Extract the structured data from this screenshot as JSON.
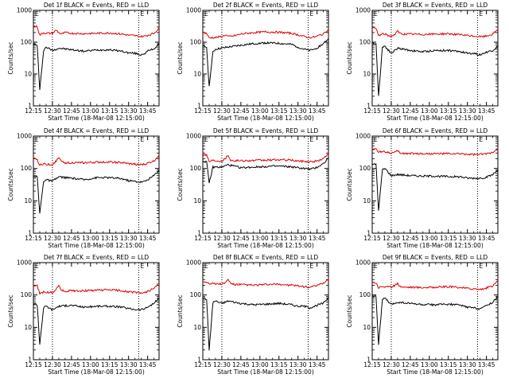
{
  "figure": {
    "x_tick_labels": [
      "12:15",
      "12:30",
      "12:45",
      "13:00",
      "13:15",
      "13:30",
      "13:45"
    ],
    "y_tick_labels": [
      "1",
      "10",
      "100",
      "1000"
    ],
    "ylabel": "Counts/sec",
    "xlabel": "Start Time (18-Mar-08 12:15:00)",
    "marker_labels": [
      "E",
      "E"
    ]
  },
  "chart_data": [
    {
      "type": "line",
      "title": "Det 1f BLACK = Events, RED = LLD",
      "x_range_minutes": [
        0,
        99
      ],
      "xlabel": "Start Time (18-Mar-08 12:15:00)",
      "ylabel": "Counts/sec",
      "ylim": [
        1,
        1000
      ],
      "log_y": true,
      "vlines_minutes": [
        15,
        83
      ],
      "series": [
        {
          "color": "#000000",
          "x": [
            0,
            3,
            5,
            8,
            10,
            15,
            20,
            30,
            40,
            50,
            60,
            70,
            75,
            80,
            84,
            88,
            91,
            95,
            99
          ],
          "values": [
            85,
            80,
            3,
            55,
            70,
            55,
            65,
            58,
            52,
            57,
            58,
            52,
            46,
            45,
            40,
            45,
            55,
            62,
            88
          ]
        },
        {
          "color": "#e00000",
          "x": [
            0,
            3,
            5,
            8,
            10,
            15,
            18,
            20,
            22,
            25,
            30,
            40,
            50,
            60,
            70,
            75,
            80,
            84,
            88,
            91,
            95,
            99
          ],
          "values": [
            320,
            310,
            165,
            200,
            190,
            190,
            240,
            200,
            180,
            200,
            190,
            185,
            190,
            195,
            180,
            165,
            160,
            150,
            155,
            170,
            190,
            280
          ]
        }
      ]
    },
    {
      "type": "line",
      "title": "Det 2f BLACK = Events, RED = LLD",
      "x_range_minutes": [
        0,
        99
      ],
      "xlabel": "Start Time (18-Mar-08 12:15:00)",
      "ylabel": "Counts/sec",
      "ylim": [
        1,
        1000
      ],
      "log_y": true,
      "vlines_minutes": [
        15,
        83
      ],
      "series": [
        {
          "color": "#000000",
          "x": [
            0,
            3,
            5,
            8,
            10,
            15,
            20,
            30,
            40,
            50,
            60,
            70,
            75,
            80,
            84,
            88,
            91,
            95,
            99
          ],
          "values": [
            75,
            70,
            4,
            50,
            60,
            65,
            70,
            80,
            90,
            95,
            92,
            85,
            70,
            60,
            55,
            60,
            70,
            90,
            130
          ]
        },
        {
          "color": "#e00000",
          "x": [
            0,
            3,
            5,
            8,
            10,
            15,
            18,
            20,
            22,
            25,
            30,
            40,
            50,
            60,
            70,
            75,
            80,
            84,
            88,
            91,
            95,
            99
          ],
          "values": [
            200,
            190,
            135,
            140,
            140,
            150,
            170,
            150,
            150,
            160,
            180,
            200,
            210,
            205,
            190,
            170,
            150,
            140,
            145,
            160,
            180,
            260
          ]
        }
      ]
    },
    {
      "type": "line",
      "title": "Det 3f BLACK = Events, RED = LLD",
      "x_range_minutes": [
        0,
        99
      ],
      "xlabel": "Start Time (18-Mar-08 12:15:00)",
      "ylabel": "Counts/sec",
      "ylim": [
        1,
        1000
      ],
      "log_y": true,
      "vlines_minutes": [
        15,
        83
      ],
      "series": [
        {
          "color": "#000000",
          "x": [
            0,
            3,
            5,
            8,
            10,
            15,
            20,
            30,
            40,
            50,
            60,
            70,
            75,
            80,
            84,
            88,
            91,
            95,
            99
          ],
          "values": [
            95,
            90,
            2,
            70,
            75,
            45,
            65,
            55,
            50,
            55,
            55,
            50,
            45,
            45,
            40,
            45,
            50,
            55,
            75
          ]
        },
        {
          "color": "#e00000",
          "x": [
            0,
            3,
            5,
            8,
            10,
            15,
            18,
            20,
            22,
            25,
            30,
            40,
            50,
            60,
            70,
            75,
            80,
            84,
            88,
            91,
            95,
            99
          ],
          "values": [
            280,
            270,
            160,
            180,
            180,
            150,
            180,
            220,
            190,
            180,
            180,
            175,
            180,
            185,
            170,
            160,
            155,
            150,
            150,
            160,
            180,
            250
          ]
        }
      ]
    },
    {
      "type": "line",
      "title": "Det 4f BLACK = Events, RED = LLD",
      "x_range_minutes": [
        0,
        99
      ],
      "xlabel": "Start Time (18-Mar-08 12:15:00)",
      "ylabel": "Counts/sec",
      "ylim": [
        1,
        1000
      ],
      "log_y": true,
      "vlines_minutes": [
        15,
        83
      ],
      "series": [
        {
          "color": "#000000",
          "x": [
            0,
            3,
            5,
            8,
            10,
            15,
            20,
            30,
            40,
            50,
            60,
            70,
            75,
            80,
            84,
            88,
            91,
            95,
            99
          ],
          "values": [
            60,
            55,
            4,
            40,
            45,
            40,
            55,
            50,
            45,
            52,
            52,
            48,
            42,
            40,
            38,
            40,
            48,
            60,
            90
          ]
        },
        {
          "color": "#e00000",
          "x": [
            0,
            3,
            5,
            8,
            10,
            15,
            18,
            20,
            22,
            25,
            30,
            40,
            50,
            60,
            70,
            75,
            80,
            84,
            88,
            91,
            95,
            99
          ],
          "values": [
            200,
            190,
            125,
            140,
            135,
            130,
            170,
            230,
            160,
            150,
            150,
            150,
            155,
            160,
            150,
            140,
            135,
            130,
            135,
            150,
            170,
            260
          ]
        }
      ]
    },
    {
      "type": "line",
      "title": "Det 5f BLACK = Events, RED = LLD",
      "x_range_minutes": [
        0,
        99
      ],
      "xlabel": "Start Time (18-Mar-08 12:15:00)",
      "ylabel": "Counts/sec",
      "ylim": [
        1,
        1000
      ],
      "log_y": true,
      "vlines_minutes": [
        15,
        83
      ],
      "series": [
        {
          "color": "#000000",
          "x": [
            0,
            3,
            5,
            8,
            10,
            15,
            20,
            30,
            40,
            50,
            60,
            70,
            75,
            80,
            84,
            88,
            91,
            95,
            99
          ],
          "values": [
            170,
            160,
            35,
            110,
            110,
            110,
            130,
            105,
            110,
            115,
            118,
            112,
            105,
            100,
            95,
            100,
            115,
            140,
            210
          ]
        },
        {
          "color": "#e00000",
          "x": [
            0,
            3,
            5,
            8,
            10,
            15,
            18,
            20,
            22,
            25,
            30,
            40,
            50,
            60,
            70,
            75,
            80,
            84,
            88,
            91,
            95,
            99
          ],
          "values": [
            280,
            260,
            165,
            180,
            175,
            170,
            210,
            260,
            180,
            175,
            175,
            175,
            180,
            185,
            180,
            170,
            165,
            160,
            165,
            175,
            200,
            290
          ]
        }
      ]
    },
    {
      "type": "line",
      "title": "Det 6f BLACK = Events, RED = LLD",
      "x_range_minutes": [
        0,
        99
      ],
      "xlabel": "Start Time (18-Mar-08 12:15:00)",
      "ylabel": "Counts/sec",
      "ylim": [
        1,
        1000
      ],
      "log_y": true,
      "vlines_minutes": [
        15,
        83
      ],
      "series": [
        {
          "color": "#000000",
          "x": [
            0,
            3,
            5,
            8,
            10,
            15,
            20,
            30,
            40,
            50,
            60,
            70,
            75,
            80,
            84,
            88,
            91,
            95,
            99
          ],
          "values": [
            140,
            130,
            5,
            90,
            100,
            60,
            65,
            60,
            58,
            58,
            56,
            55,
            50,
            50,
            50,
            52,
            55,
            65,
            90
          ]
        },
        {
          "color": "#e00000",
          "x": [
            0,
            3,
            5,
            8,
            10,
            15,
            18,
            20,
            22,
            25,
            30,
            40,
            50,
            60,
            70,
            75,
            80,
            84,
            88,
            91,
            95,
            99
          ],
          "values": [
            400,
            390,
            320,
            340,
            330,
            300,
            310,
            350,
            300,
            290,
            290,
            285,
            285,
            285,
            280,
            275,
            270,
            270,
            275,
            290,
            320,
            420
          ]
        }
      ]
    },
    {
      "type": "line",
      "title": "Det 7f BLACK = Events, RED = LLD",
      "x_range_minutes": [
        0,
        99
      ],
      "xlabel": "Start Time (18-Mar-08 12:15:00)",
      "ylabel": "Counts/sec",
      "ylim": [
        1,
        1000
      ],
      "log_y": true,
      "vlines_minutes": [
        15,
        83
      ],
      "series": [
        {
          "color": "#000000",
          "x": [
            0,
            3,
            5,
            8,
            10,
            15,
            20,
            30,
            40,
            50,
            60,
            70,
            75,
            80,
            84,
            88,
            91,
            95,
            99
          ],
          "values": [
            55,
            50,
            3,
            40,
            45,
            35,
            45,
            48,
            42,
            45,
            45,
            42,
            38,
            36,
            35,
            38,
            45,
            55,
            80
          ]
        },
        {
          "color": "#e00000",
          "x": [
            0,
            3,
            5,
            8,
            10,
            15,
            18,
            20,
            22,
            25,
            30,
            40,
            50,
            60,
            70,
            75,
            80,
            84,
            88,
            91,
            95,
            99
          ],
          "values": [
            200,
            190,
            110,
            125,
            120,
            120,
            150,
            200,
            140,
            130,
            135,
            135,
            140,
            145,
            135,
            125,
            120,
            115,
            120,
            135,
            160,
            230
          ]
        }
      ]
    },
    {
      "type": "line",
      "title": "Det 8f BLACK = Events, RED = LLD",
      "x_range_minutes": [
        0,
        99
      ],
      "xlabel": "Start Time (18-Mar-08 12:15:00)",
      "ylabel": "Counts/sec",
      "ylim": [
        1,
        1000
      ],
      "log_y": true,
      "vlines_minutes": [
        15,
        83
      ],
      "series": [
        {
          "color": "#000000",
          "x": [
            0,
            3,
            5,
            8,
            10,
            15,
            20,
            30,
            40,
            50,
            60,
            70,
            75,
            80,
            84,
            88,
            91,
            95,
            99
          ],
          "values": [
            80,
            75,
            2,
            60,
            65,
            55,
            65,
            55,
            50,
            52,
            55,
            50,
            45,
            45,
            40,
            45,
            50,
            55,
            85
          ]
        },
        {
          "color": "#e00000",
          "x": [
            0,
            3,
            5,
            8,
            10,
            15,
            18,
            20,
            22,
            25,
            30,
            40,
            50,
            60,
            70,
            75,
            80,
            84,
            88,
            91,
            95,
            99
          ],
          "values": [
            260,
            250,
            230,
            230,
            220,
            220,
            240,
            300,
            230,
            210,
            210,
            200,
            210,
            215,
            200,
            190,
            180,
            175,
            185,
            200,
            230,
            320
          ]
        }
      ]
    },
    {
      "type": "line",
      "title": "Det 9f BLACK = Events, RED = LLD",
      "x_range_minutes": [
        0,
        99
      ],
      "xlabel": "Start Time (18-Mar-08 12:15:00)",
      "ylabel": "Counts/sec",
      "ylim": [
        1,
        1000
      ],
      "log_y": true,
      "vlines_minutes": [
        15,
        83
      ],
      "series": [
        {
          "color": "#000000",
          "x": [
            0,
            3,
            5,
            8,
            10,
            15,
            20,
            30,
            40,
            50,
            60,
            70,
            75,
            80,
            84,
            88,
            91,
            95,
            99
          ],
          "values": [
            95,
            90,
            3,
            70,
            80,
            50,
            60,
            55,
            50,
            50,
            52,
            48,
            42,
            40,
            38,
            42,
            50,
            60,
            90
          ]
        },
        {
          "color": "#e00000",
          "x": [
            0,
            3,
            5,
            8,
            10,
            15,
            18,
            20,
            22,
            25,
            30,
            40,
            50,
            60,
            70,
            75,
            80,
            84,
            88,
            91,
            95,
            99
          ],
          "values": [
            250,
            240,
            170,
            185,
            180,
            175,
            200,
            230,
            185,
            175,
            175,
            170,
            175,
            180,
            170,
            160,
            155,
            150,
            155,
            170,
            190,
            280
          ]
        }
      ]
    }
  ]
}
